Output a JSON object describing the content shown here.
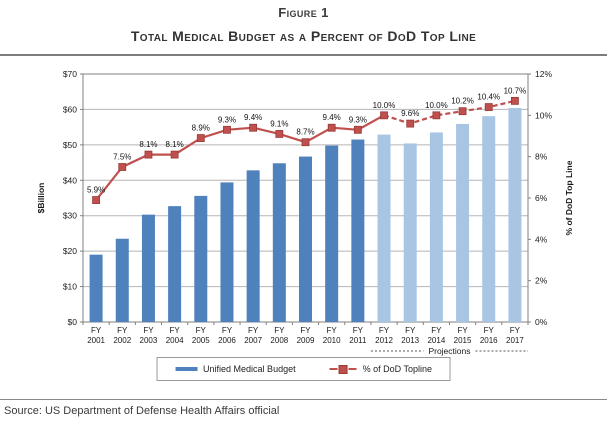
{
  "header": {
    "figure_label": "Figure 1",
    "title": "Total Medical Budget as a Percent of DoD Top Line"
  },
  "chart_data": {
    "type": "bar+line",
    "categories": [
      "FY 2001",
      "FY 2002",
      "FY 2003",
      "FY 2004",
      "FY 2005",
      "FY 2006",
      "FY 2007",
      "FY 2008",
      "FY 2009",
      "FY 2010",
      "FY 2011",
      "FY 2012",
      "FY 2013",
      "FY 2014",
      "FY 2015",
      "FY 2016",
      "FY 2017"
    ],
    "series": [
      {
        "name": "Unified Medical Budget",
        "type": "bar",
        "axis": "left",
        "values": [
          19.0,
          23.5,
          30.3,
          32.7,
          35.6,
          39.4,
          42.8,
          44.8,
          46.7,
          49.8,
          51.5,
          52.9,
          50.4,
          53.5,
          55.9,
          58.1,
          60.4
        ],
        "bar_color": "#4f81bd",
        "projection_bar_color": "#a9c5e4",
        "projection_start_index": 11
      },
      {
        "name": "% of DoD Topline",
        "type": "line",
        "axis": "right",
        "values": [
          5.9,
          7.5,
          8.1,
          8.1,
          8.9,
          9.3,
          9.4,
          9.1,
          8.7,
          9.4,
          9.3,
          10.0,
          9.6,
          10.0,
          10.2,
          10.4,
          10.7
        ],
        "point_labels": [
          "5.9%",
          "7.5%",
          "8.1%",
          "8.1%",
          "8.9%",
          "9.3%",
          "9.4%",
          "9.1%",
          "8.7%",
          "9.4%",
          "9.3%",
          "10.0%",
          "9.6%",
          "10.0%",
          "10.2%",
          "10.4%",
          "10.7%"
        ],
        "line_color": "#c0504d",
        "marker_edge_color": "#953b38",
        "dashed_from_index": 11
      }
    ],
    "left_axis": {
      "label": "$Billion",
      "ticks": [
        "$0",
        "$10",
        "$20",
        "$30",
        "$40",
        "$50",
        "$60",
        "$70"
      ],
      "lim": [
        0,
        70
      ],
      "step": 10
    },
    "right_axis": {
      "label": "% of DoD Top Line",
      "ticks": [
        "0%",
        "2%",
        "4%",
        "6%",
        "8%",
        "10%",
        "12%"
      ],
      "lim": [
        0,
        12
      ],
      "step": 2
    },
    "projections_label": "Projections",
    "grid": true,
    "gridline_color": "#b5b5b5",
    "axis_line_color": "#808080",
    "legend_position": "bottom"
  },
  "source": "Source: US Department of Defense Health Affairs official"
}
